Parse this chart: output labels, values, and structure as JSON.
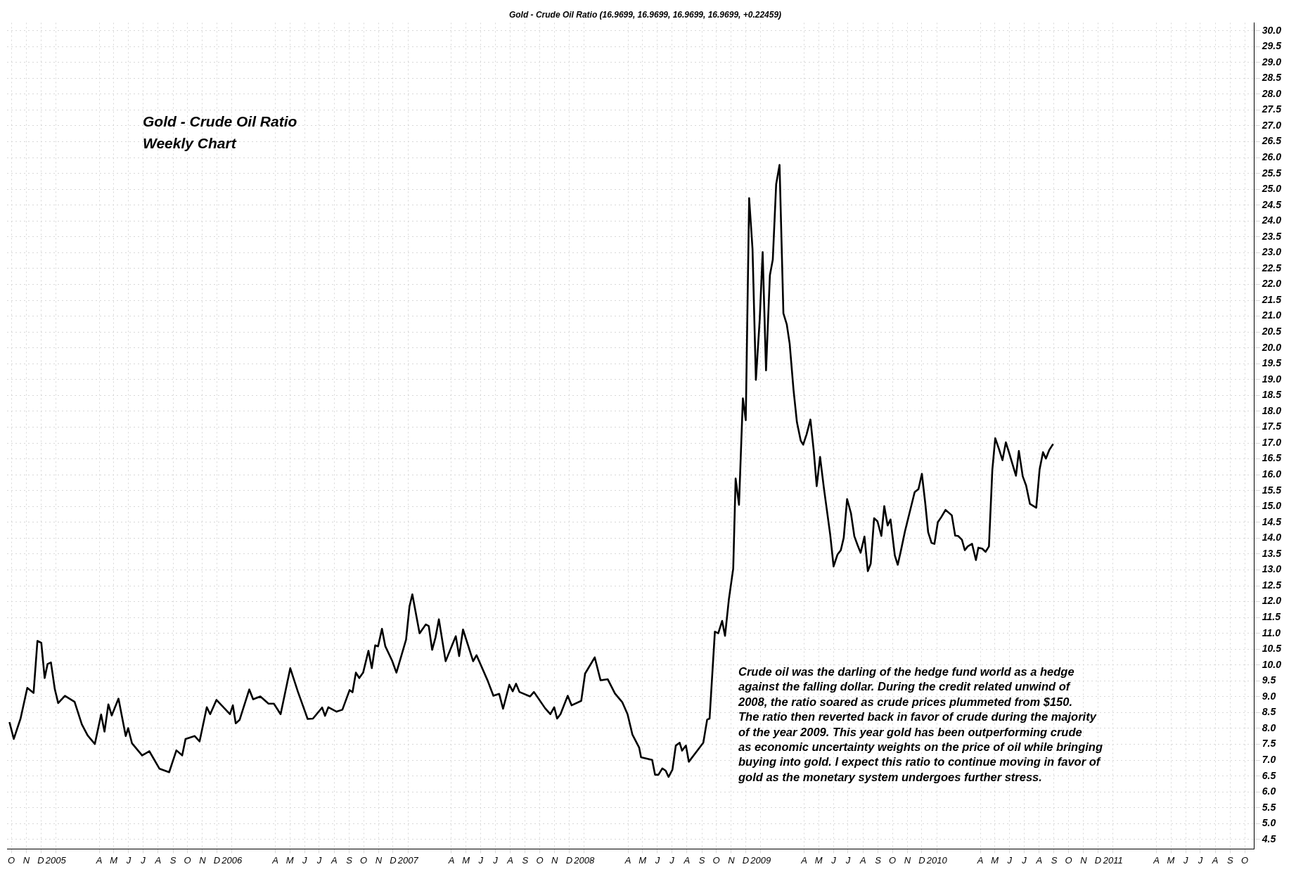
{
  "chart_data": {
    "type": "line",
    "title": "Gold - Crude Oil Ratio (16.9699, 16.9699, 16.9699, 16.9699, +0.22459)",
    "annotations": [
      "Gold - Crude Oil Ratio\nWeekly Chart",
      "Crude oil was the darling of the hedge fund world as a hedge\nagainst the falling dollar. During the credit related unwind of\n2008, the ratio soared as crude prices plummeted from $150.\nThe ratio then reverted back in favor of crude during the majority\nof the year 2009. This year gold has been outperforming crude\nas economic uncertainty weights on the price of oil while bringing\nbuying into gold. I expect this ratio to continue moving in favor of\ngold as the monetary system undergoes further stress."
    ],
    "x": [
      "2004-09-27",
      "2004-10-06",
      "2004-10-20",
      "2004-11-03",
      "2004-11-16",
      "2004-11-24",
      "2004-12-02",
      "2004-12-09",
      "2004-12-15",
      "2004-12-22",
      "2004-12-30",
      "2005-01-06",
      "2005-01-20",
      "2005-02-09",
      "2005-02-24",
      "2005-03-08",
      "2005-03-23",
      "2005-04-05",
      "2005-04-12",
      "2005-04-20",
      "2005-04-27",
      "2005-05-11",
      "2005-05-26",
      "2005-05-31",
      "2005-06-08",
      "2005-06-29",
      "2005-07-14",
      "2005-08-04",
      "2005-08-24",
      "2005-09-08",
      "2005-09-20",
      "2005-09-27",
      "2005-10-16",
      "2005-10-26",
      "2005-11-10",
      "2005-11-17",
      "2005-11-30",
      "2005-12-28",
      "2006-01-03",
      "2006-01-09",
      "2006-01-17",
      "2006-02-06",
      "2006-02-14",
      "2006-03-01",
      "2006-03-18",
      "2006-03-29",
      "2006-04-12",
      "2006-05-02",
      "2006-05-18",
      "2006-06-07",
      "2006-06-18",
      "2006-07-07",
      "2006-07-13",
      "2006-07-20",
      "2006-08-06",
      "2006-08-18",
      "2006-09-02",
      "2006-09-08",
      "2006-09-15",
      "2006-09-22",
      "2006-09-30",
      "2006-10-11",
      "2006-10-18",
      "2006-10-25",
      "2006-10-31",
      "2006-11-08",
      "2006-11-15",
      "2006-11-29",
      "2006-12-08",
      "2006-12-28",
      "2007-01-04",
      "2007-01-10",
      "2007-01-25",
      "2007-02-07",
      "2007-02-13",
      "2007-02-20",
      "2007-02-27",
      "2007-03-06",
      "2007-03-20",
      "2007-04-10",
      "2007-04-17",
      "2007-04-25",
      "2007-05-16",
      "2007-05-23",
      "2007-06-15",
      "2007-06-27",
      "2007-07-09",
      "2007-07-17",
      "2007-07-30",
      "2007-08-06",
      "2007-08-13",
      "2007-08-20",
      "2007-09-11",
      "2007-09-19",
      "2007-10-12",
      "2007-10-23",
      "2007-10-31",
      "2007-11-06",
      "2007-11-13",
      "2007-11-28",
      "2007-12-06",
      "2007-12-26",
      "2008-01-03",
      "2008-01-23",
      "2008-02-04",
      "2008-02-19",
      "2008-03-05",
      "2008-03-20",
      "2008-03-31",
      "2008-04-10",
      "2008-04-24",
      "2008-04-28",
      "2008-05-21",
      "2008-05-27",
      "2008-06-03",
      "2008-06-11",
      "2008-06-18",
      "2008-06-24",
      "2008-07-02",
      "2008-07-09",
      "2008-07-17",
      "2008-07-22",
      "2008-07-30",
      "2008-08-05",
      "2008-08-19",
      "2008-09-04",
      "2008-09-12",
      "2008-09-17",
      "2008-09-28",
      "2008-10-05",
      "2008-10-13",
      "2008-10-19",
      "2008-10-27",
      "2008-11-05",
      "2008-11-10",
      "2008-11-17",
      "2008-11-25",
      "2008-12-01",
      "2008-12-08",
      "2008-12-15",
      "2008-12-22",
      "2008-12-30",
      "2009-01-05",
      "2009-01-12",
      "2009-01-20",
      "2009-01-26",
      "2009-02-02",
      "2009-02-09",
      "2009-02-17",
      "2009-02-24",
      "2009-03-02",
      "2009-03-10",
      "2009-03-17",
      "2009-03-25",
      "2009-03-30",
      "2009-04-06",
      "2009-04-14",
      "2009-04-21",
      "2009-04-27",
      "2009-05-04",
      "2009-05-12",
      "2009-05-25",
      "2009-06-01",
      "2009-06-09",
      "2009-06-16",
      "2009-06-22",
      "2009-06-29",
      "2009-07-07",
      "2009-07-14",
      "2009-07-21",
      "2009-07-27",
      "2009-08-04",
      "2009-08-11",
      "2009-08-17",
      "2009-08-24",
      "2009-08-31",
      "2009-09-08",
      "2009-09-14",
      "2009-09-21",
      "2009-09-27",
      "2009-10-06",
      "2009-10-12",
      "2009-10-19",
      "2009-10-27",
      "2009-11-16",
      "2009-11-24",
      "2009-12-01",
      "2009-12-08",
      "2009-12-14",
      "2009-12-21",
      "2009-12-27",
      "2010-01-03",
      "2010-01-10",
      "2010-01-19",
      "2010-02-01",
      "2010-02-08",
      "2010-02-14",
      "2010-02-22",
      "2010-02-28",
      "2010-03-06",
      "2010-03-15",
      "2010-03-23",
      "2010-03-28",
      "2010-04-05",
      "2010-04-12",
      "2010-04-19",
      "2010-04-26",
      "2010-05-02",
      "2010-05-10",
      "2010-05-17",
      "2010-05-24",
      "2010-05-31",
      "2010-06-07",
      "2010-06-14",
      "2010-06-20",
      "2010-06-28",
      "2010-07-05",
      "2010-07-13",
      "2010-07-26",
      "2010-08-02",
      "2010-08-09",
      "2010-08-15",
      "2010-08-22",
      "2010-08-30"
    ],
    "series": [
      {
        "color": "#000000",
        "values": [
          8.2,
          7.67,
          8.31,
          9.28,
          9.12,
          10.76,
          10.7,
          9.59,
          10.03,
          10.08,
          9.24,
          8.8,
          9.03,
          8.84,
          8.13,
          7.78,
          7.51,
          8.44,
          7.9,
          8.76,
          8.41,
          8.94,
          7.76,
          8.01,
          7.53,
          7.15,
          7.28,
          6.73,
          6.62,
          7.31,
          7.15,
          7.67,
          7.76,
          7.59,
          8.67,
          8.45,
          8.9,
          8.45,
          8.73,
          8.16,
          8.27,
          9.23,
          8.92,
          9.01,
          8.78,
          8.78,
          8.45,
          9.9,
          9.15,
          8.3,
          8.31,
          8.66,
          8.4,
          8.67,
          8.53,
          8.59,
          9.21,
          9.14,
          9.76,
          9.59,
          9.76,
          10.45,
          9.9,
          10.62,
          10.59,
          11.14,
          10.59,
          10.14,
          9.76,
          10.8,
          11.84,
          12.23,
          11.0,
          11.28,
          11.23,
          10.48,
          10.87,
          11.44,
          10.12,
          10.91,
          10.28,
          11.12,
          10.12,
          10.31,
          9.51,
          9.03,
          9.09,
          8.62,
          9.38,
          9.17,
          9.41,
          9.15,
          9.01,
          9.15,
          8.64,
          8.45,
          8.67,
          8.31,
          8.45,
          9.03,
          8.73,
          8.87,
          9.73,
          10.24,
          9.52,
          9.55,
          9.1,
          8.83,
          8.45,
          7.81,
          7.4,
          7.09,
          7.01,
          6.54,
          6.54,
          6.74,
          6.67,
          6.47,
          6.7,
          7.46,
          7.55,
          7.3,
          7.46,
          6.95,
          7.23,
          7.55,
          8.28,
          8.31,
          11.05,
          11.0,
          11.39,
          10.92,
          12.07,
          13.04,
          15.88,
          15.05,
          18.41,
          17.72,
          24.72,
          23.12,
          18.99,
          20.91,
          23.02,
          19.29,
          22.29,
          22.78,
          25.16,
          25.77,
          21.09,
          20.74,
          20.13,
          18.67,
          17.66,
          17.07,
          16.95,
          17.27,
          17.74,
          16.73,
          15.64,
          16.56,
          15.57,
          14.11,
          13.11,
          13.48,
          13.62,
          14.01,
          15.23,
          14.79,
          14.06,
          13.77,
          13.54,
          14.05,
          12.96,
          13.2,
          14.63,
          14.53,
          14.07,
          15.01,
          14.4,
          14.59,
          13.45,
          13.16,
          13.64,
          14.22,
          15.45,
          15.55,
          16.03,
          15.1,
          14.19,
          13.85,
          13.82,
          14.5,
          14.66,
          14.89,
          14.72,
          14.08,
          14.07,
          13.95,
          13.62,
          13.74,
          13.82,
          13.31,
          13.7,
          13.67,
          13.57,
          13.74,
          16.15,
          17.15,
          16.8,
          16.46,
          17.02,
          16.68,
          16.32,
          15.97,
          16.75,
          15.95,
          15.66,
          15.08,
          14.96,
          16.17,
          16.71,
          16.51,
          16.78,
          16.97
        ]
      }
    ],
    "xlim": [
      "2004-09-22",
      "2011-10-21"
    ],
    "xticks": [
      {
        "value": "2004-10",
        "label": "O"
      },
      {
        "value": "2004-11",
        "label": "N"
      },
      {
        "value": "2004-12",
        "label": "D"
      },
      {
        "value": "2005-01",
        "label": "2005"
      },
      {
        "value": "2005-04",
        "label": "A"
      },
      {
        "value": "2005-05",
        "label": "M"
      },
      {
        "value": "2005-06",
        "label": "J"
      },
      {
        "value": "2005-07",
        "label": "J"
      },
      {
        "value": "2005-08",
        "label": "A"
      },
      {
        "value": "2005-09",
        "label": "S"
      },
      {
        "value": "2005-10",
        "label": "O"
      },
      {
        "value": "2005-11",
        "label": "N"
      },
      {
        "value": "2005-12",
        "label": "D"
      },
      {
        "value": "2006-01",
        "label": "2006"
      },
      {
        "value": "2006-04",
        "label": "A"
      },
      {
        "value": "2006-05",
        "label": "M"
      },
      {
        "value": "2006-06",
        "label": "J"
      },
      {
        "value": "2006-07",
        "label": "J"
      },
      {
        "value": "2006-08",
        "label": "A"
      },
      {
        "value": "2006-09",
        "label": "S"
      },
      {
        "value": "2006-10",
        "label": "O"
      },
      {
        "value": "2006-11",
        "label": "N"
      },
      {
        "value": "2006-12",
        "label": "D"
      },
      {
        "value": "2007-01",
        "label": "2007"
      },
      {
        "value": "2007-04",
        "label": "A"
      },
      {
        "value": "2007-05",
        "label": "M"
      },
      {
        "value": "2007-06",
        "label": "J"
      },
      {
        "value": "2007-07",
        "label": "J"
      },
      {
        "value": "2007-08",
        "label": "A"
      },
      {
        "value": "2007-09",
        "label": "S"
      },
      {
        "value": "2007-10",
        "label": "O"
      },
      {
        "value": "2007-11",
        "label": "N"
      },
      {
        "value": "2007-12",
        "label": "D"
      },
      {
        "value": "2008-01",
        "label": "2008"
      },
      {
        "value": "2008-04",
        "label": "A"
      },
      {
        "value": "2008-05",
        "label": "M"
      },
      {
        "value": "2008-06",
        "label": "J"
      },
      {
        "value": "2008-07",
        "label": "J"
      },
      {
        "value": "2008-08",
        "label": "A"
      },
      {
        "value": "2008-09",
        "label": "S"
      },
      {
        "value": "2008-10",
        "label": "O"
      },
      {
        "value": "2008-11",
        "label": "N"
      },
      {
        "value": "2008-12",
        "label": "D"
      },
      {
        "value": "2009-01",
        "label": "2009"
      },
      {
        "value": "2009-04",
        "label": "A"
      },
      {
        "value": "2009-05",
        "label": "M"
      },
      {
        "value": "2009-06",
        "label": "J"
      },
      {
        "value": "2009-07",
        "label": "J"
      },
      {
        "value": "2009-08",
        "label": "A"
      },
      {
        "value": "2009-09",
        "label": "S"
      },
      {
        "value": "2009-10",
        "label": "O"
      },
      {
        "value": "2009-11",
        "label": "N"
      },
      {
        "value": "2009-12",
        "label": "D"
      },
      {
        "value": "2010-01",
        "label": "2010"
      },
      {
        "value": "2010-04",
        "label": "A"
      },
      {
        "value": "2010-05",
        "label": "M"
      },
      {
        "value": "2010-06",
        "label": "J"
      },
      {
        "value": "2010-07",
        "label": "J"
      },
      {
        "value": "2010-08",
        "label": "A"
      },
      {
        "value": "2010-09",
        "label": "S"
      },
      {
        "value": "2010-10",
        "label": "O"
      },
      {
        "value": "2010-11",
        "label": "N"
      },
      {
        "value": "2010-12",
        "label": "D"
      },
      {
        "value": "2011-01",
        "label": "2011"
      },
      {
        "value": "2011-04",
        "label": "A"
      },
      {
        "value": "2011-05",
        "label": "M"
      },
      {
        "value": "2011-06",
        "label": "J"
      },
      {
        "value": "2011-07",
        "label": "J"
      },
      {
        "value": "2011-08",
        "label": "A"
      },
      {
        "value": "2011-09",
        "label": "S"
      },
      {
        "value": "2011-10",
        "label": "O"
      }
    ],
    "ylim": [
      4.2,
      30.25
    ],
    "yticks": [
      4.5,
      {
        "value": 5,
        "label": "5.0"
      },
      5.5,
      {
        "value": 6,
        "label": "6.0"
      },
      6.5,
      {
        "value": 7,
        "label": "7.0"
      },
      7.5,
      {
        "value": 8,
        "label": "8.0"
      },
      8.5,
      {
        "value": 9,
        "label": "9.0"
      },
      9.5,
      {
        "value": 10,
        "label": "10.0"
      },
      10.5,
      {
        "value": 11,
        "label": "11.0"
      },
      11.5,
      {
        "value": 12,
        "label": "12.0"
      },
      12.5,
      {
        "value": 13,
        "label": "13.0"
      },
      13.5,
      {
        "value": 14,
        "label": "14.0"
      },
      14.5,
      {
        "value": 15,
        "label": "15.0"
      },
      15.5,
      {
        "value": 16,
        "label": "16.0"
      },
      16.5,
      {
        "value": 17,
        "label": "17.0"
      },
      17.5,
      {
        "value": 18,
        "label": "18.0"
      },
      18.5,
      {
        "value": 19,
        "label": "19.0"
      },
      19.5,
      {
        "value": 20,
        "label": "20.0"
      },
      20.5,
      {
        "value": 21,
        "label": "21.0"
      },
      21.5,
      {
        "value": 22,
        "label": "22.0"
      },
      22.5,
      {
        "value": 23,
        "label": "23.0"
      },
      23.5,
      {
        "value": 24,
        "label": "24.0"
      },
      24.5,
      {
        "value": 25,
        "label": "25.0"
      },
      25.5,
      {
        "value": 26,
        "label": "26.0"
      },
      26.5,
      {
        "value": 27,
        "label": "27.0"
      },
      27.5,
      {
        "value": 28,
        "label": "28.0"
      },
      28.5,
      {
        "value": 29,
        "label": "29.0"
      },
      29.5,
      {
        "value": 30,
        "label": "30.0"
      }
    ],
    "grid": true,
    "legend": false
  }
}
